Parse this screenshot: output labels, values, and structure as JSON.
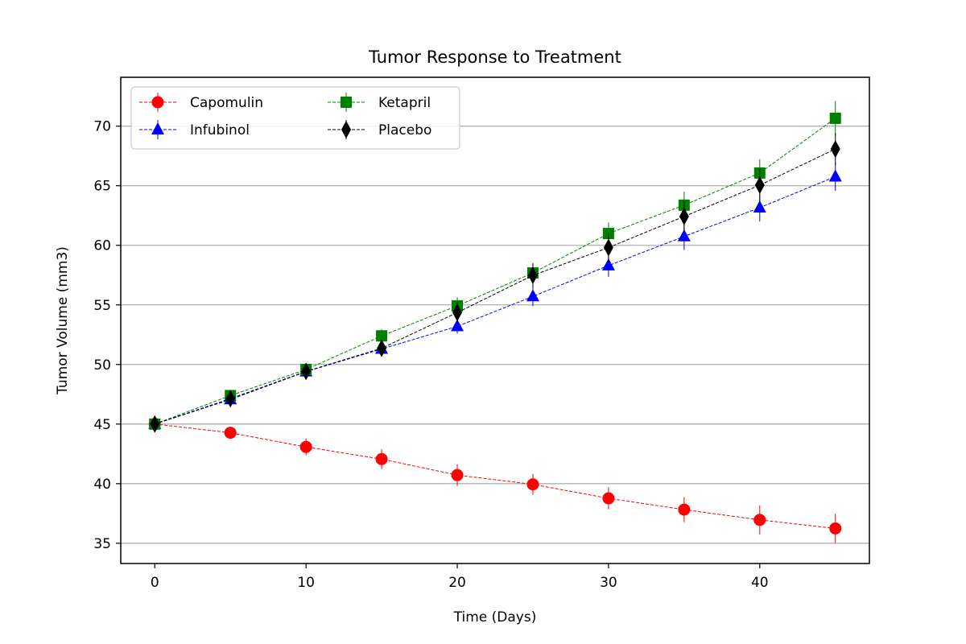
{
  "chart_data": {
    "type": "line",
    "title": "Tumor Response to Treatment",
    "xlabel": "Time (Days)",
    "ylabel": "Tumor Volume (mm3)",
    "xlim": [
      -2.25,
      47.25
    ],
    "ylim": [
      33.3,
      74.1
    ],
    "xticks": [
      0,
      10,
      20,
      30,
      40
    ],
    "yticks": [
      35,
      40,
      45,
      50,
      55,
      60,
      65,
      70
    ],
    "grid": "horizontal",
    "legend_position": "top-left",
    "legend_columns": 2,
    "x": [
      0,
      5,
      10,
      15,
      20,
      25,
      30,
      35,
      40,
      45
    ],
    "series": [
      {
        "name": "Capomulin",
        "color": "#ff0000",
        "marker": "circle",
        "values": [
          45.0,
          44.27,
          43.08,
          42.06,
          40.72,
          39.94,
          38.77,
          37.82,
          36.96,
          36.24
        ],
        "errors": [
          0,
          0.45,
          0.7,
          0.84,
          0.91,
          0.88,
          0.93,
          1.05,
          1.22,
          1.22
        ]
      },
      {
        "name": "Infubinol",
        "color": "#0000ff",
        "marker": "triangle",
        "values": [
          45.0,
          47.06,
          49.4,
          51.3,
          53.2,
          55.71,
          58.3,
          60.74,
          63.16,
          65.76
        ],
        "errors": [
          0,
          0.24,
          0.43,
          0.53,
          0.6,
          0.81,
          0.94,
          1.13,
          1.16,
          1.19
        ]
      },
      {
        "name": "Ketapril",
        "color": "#008000",
        "marker": "square",
        "values": [
          45.0,
          47.39,
          49.58,
          52.4,
          54.92,
          57.68,
          60.99,
          63.37,
          66.07,
          70.66
        ],
        "errors": [
          0,
          0.26,
          0.36,
          0.58,
          0.73,
          0.76,
          0.93,
          1.13,
          1.16,
          1.45
        ]
      },
      {
        "name": "Placebo",
        "color": "#000000",
        "marker": "diamond",
        "values": [
          45.0,
          47.13,
          49.42,
          51.36,
          54.36,
          57.48,
          59.81,
          62.42,
          65.05,
          68.08
        ],
        "errors": [
          0,
          0.22,
          0.4,
          0.61,
          0.84,
          1.03,
          1.22,
          1.29,
          1.37,
          1.35
        ]
      }
    ]
  }
}
